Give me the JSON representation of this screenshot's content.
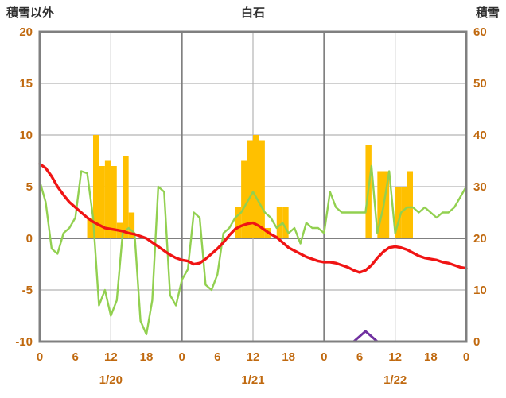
{
  "chart_data": {
    "type": "line",
    "title": "白石",
    "left_axis": {
      "label": "積雪以外",
      "min": -10,
      "max": 20,
      "ticks": [
        20,
        15,
        10,
        5,
        0,
        -5,
        -10
      ]
    },
    "right_axis": {
      "label": "積雪",
      "min": 0,
      "max": 60,
      "ticks": [
        60,
        50,
        40,
        30,
        20,
        10,
        0
      ]
    },
    "x_hours_total": 72,
    "x_tick_hours": [
      0,
      6,
      12,
      18,
      24,
      30,
      36,
      42,
      48,
      54,
      60,
      66,
      72
    ],
    "x_tick_labels": [
      "0",
      "6",
      "12",
      "18",
      "0",
      "6",
      "12",
      "18",
      "0",
      "6",
      "12",
      "18",
      "0"
    ],
    "date_labels": [
      {
        "label": "1/20",
        "hour": 12
      },
      {
        "label": "1/21",
        "hour": 36
      },
      {
        "label": "1/22",
        "hour": 60
      }
    ],
    "grid": {
      "h_lines": [
        -5,
        0,
        5,
        10,
        15
      ],
      "v_lines_hours": [
        12,
        24,
        36,
        48,
        60
      ],
      "major_h": [
        0
      ],
      "major_v": [
        24,
        48
      ]
    },
    "colors": {
      "frame": "#808080",
      "grid_minor": "#b3b3b3",
      "grid_major": "#808080",
      "tick_text": "#c0690f",
      "title_text": "#303030"
    },
    "series": [
      {
        "name": "orange-bars",
        "type": "bar",
        "axis": "left",
        "color": "#ffc000",
        "values": [
          0,
          0,
          0,
          0,
          0,
          0,
          0,
          0,
          2,
          10,
          7,
          7.5,
          7,
          1.5,
          8,
          2.5,
          0,
          0,
          0,
          0,
          0,
          0,
          0,
          0,
          0,
          0,
          0,
          0,
          0,
          0,
          0,
          0,
          0,
          3,
          7.5,
          9.5,
          10,
          9.5,
          1,
          0,
          3,
          3,
          0,
          0,
          0,
          0,
          0,
          0,
          0,
          0,
          0,
          0,
          0,
          0,
          0,
          9,
          0,
          6.5,
          6.5,
          0,
          5,
          5,
          6.5,
          0,
          0,
          0,
          0,
          0,
          0,
          0,
          0,
          0
        ]
      },
      {
        "name": "green-line",
        "type": "line",
        "axis": "left",
        "color": "#92d050",
        "width": 2.4,
        "values": [
          5.5,
          3.5,
          -1.0,
          -1.5,
          0.5,
          1.0,
          2.0,
          6.5,
          6.3,
          2.0,
          -6.5,
          -5.0,
          -7.5,
          -6.0,
          0.5,
          1.0,
          0.5,
          -8.0,
          -9.3,
          -6.0,
          5.0,
          4.5,
          -5.5,
          -6.5,
          -4.0,
          -3.0,
          2.5,
          2.0,
          -4.5,
          -5.0,
          -3.5,
          0.5,
          1.0,
          2.0,
          2.5,
          3.5,
          4.5,
          3.5,
          2.5,
          2.0,
          1.0,
          1.5,
          0.5,
          1.0,
          -0.5,
          1.5,
          1.0,
          1.0,
          0.5,
          4.5,
          3.0,
          2.5,
          2.5,
          2.5,
          2.5,
          2.5,
          7.0,
          0.5,
          3.0,
          6.5,
          0.5,
          2.5,
          3.0,
          3.0,
          2.5,
          3.0,
          2.5,
          2.0,
          2.5,
          2.5,
          3.0,
          4.0,
          5.0
        ]
      },
      {
        "name": "red-line",
        "type": "line",
        "axis": "left",
        "color": "#f01414",
        "width": 3.4,
        "values": [
          7.2,
          6.8,
          6.0,
          5.0,
          4.2,
          3.5,
          3.0,
          2.5,
          2.0,
          1.6,
          1.3,
          1.0,
          0.9,
          0.8,
          0.7,
          0.5,
          0.4,
          0.2,
          0.0,
          -0.4,
          -0.8,
          -1.2,
          -1.6,
          -1.9,
          -2.1,
          -2.2,
          -2.5,
          -2.4,
          -2.0,
          -1.5,
          -1.0,
          -0.4,
          0.3,
          0.9,
          1.2,
          1.4,
          1.5,
          1.2,
          0.8,
          0.4,
          0.1,
          -0.4,
          -0.9,
          -1.2,
          -1.5,
          -1.8,
          -2.0,
          -2.2,
          -2.3,
          -2.3,
          -2.4,
          -2.6,
          -2.8,
          -3.1,
          -3.3,
          -3.1,
          -2.6,
          -1.9,
          -1.3,
          -0.9,
          -0.8,
          -0.9,
          -1.1,
          -1.4,
          -1.7,
          -1.9,
          -2.0,
          -2.1,
          -2.3,
          -2.4,
          -2.6,
          -2.8,
          -2.9
        ]
      },
      {
        "name": "purple-line",
        "type": "line",
        "axis": "right",
        "color": "#7030a0",
        "width": 3,
        "values": [
          0,
          0,
          0,
          0,
          0,
          0,
          0,
          0,
          0,
          0,
          0,
          0,
          0,
          0,
          0,
          0,
          0,
          0,
          0,
          0,
          0,
          0,
          0,
          0,
          0,
          0,
          0,
          0,
          0,
          0,
          0,
          0,
          0,
          0,
          0,
          0,
          0,
          0,
          0,
          0,
          0,
          0,
          0,
          0,
          0,
          0,
          0,
          0,
          0,
          0,
          0,
          0,
          0,
          0,
          1,
          2,
          1,
          0,
          0,
          0,
          0,
          0,
          0,
          0,
          0,
          0,
          0,
          0,
          0,
          0,
          0,
          0,
          0
        ]
      }
    ]
  }
}
